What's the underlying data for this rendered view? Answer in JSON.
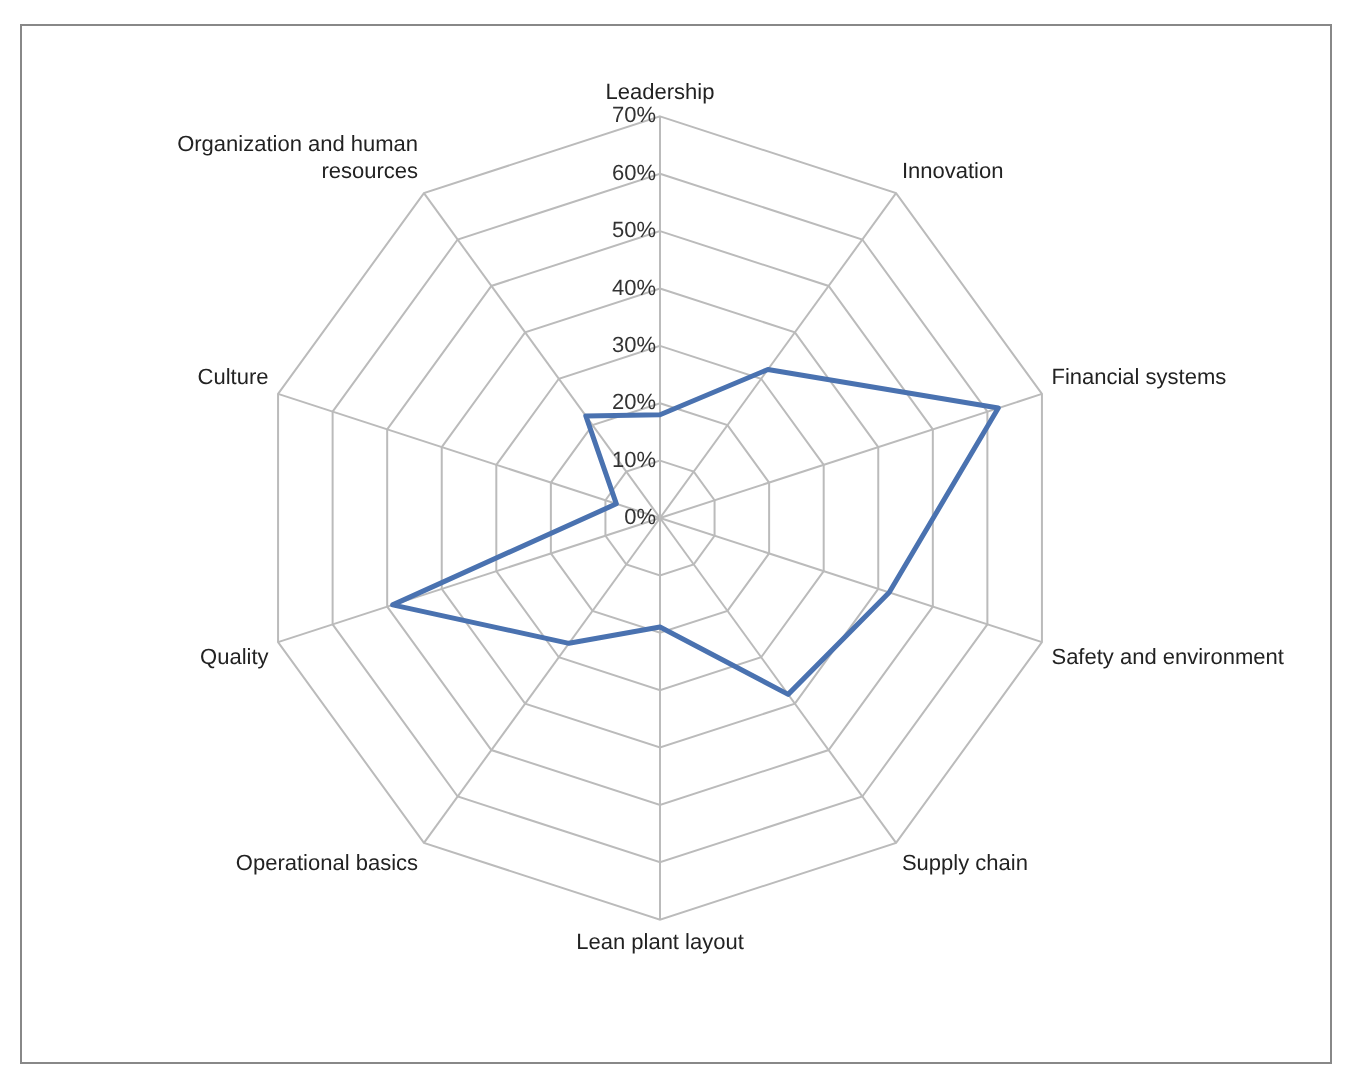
{
  "chart_data": {
    "type": "radar",
    "categories": [
      "Leadership",
      "Innovation",
      "Financial systems",
      "Safety and environment",
      "Supply chain",
      "Lean plant layout",
      "Operational basics",
      "Quality",
      "Culture",
      "Organization and human resources"
    ],
    "series": [
      {
        "color": "#4a72b0",
        "values": [
          18,
          32,
          62,
          42,
          38,
          19,
          27,
          49,
          8,
          22
        ]
      }
    ],
    "ylim": [
      0,
      70
    ],
    "yticks": [
      {
        "value": 0,
        "label": "0%"
      },
      {
        "value": 10,
        "label": "10%"
      },
      {
        "value": 20,
        "label": "20%"
      },
      {
        "value": 30,
        "label": "30%"
      },
      {
        "value": 40,
        "label": "40%"
      },
      {
        "value": 50,
        "label": "50%"
      },
      {
        "value": 60,
        "label": "60%"
      },
      {
        "value": 70,
        "label": "70%"
      }
    ],
    "grid": true,
    "legend": false,
    "marker": "none",
    "line_style": "solid"
  }
}
